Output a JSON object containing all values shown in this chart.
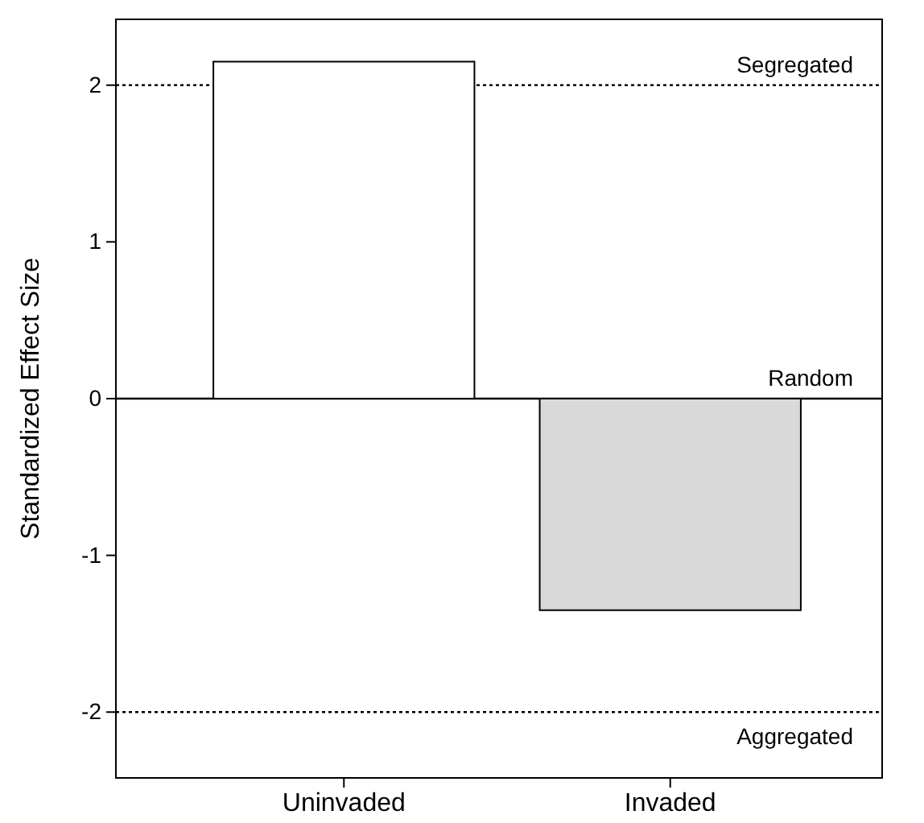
{
  "chart_data": {
    "type": "bar",
    "ylabel": "Standardized Effect Size",
    "categories": [
      "Uninvaded",
      "Invaded"
    ],
    "values": [
      2.15,
      -1.35
    ],
    "colors": [
      "#ffffff",
      "#d9d9d9"
    ],
    "ylim": [
      -2.42,
      2.42
    ],
    "yticks": [
      -2,
      -1,
      0,
      1,
      2
    ],
    "ref_lines": [
      {
        "axis": "y",
        "value": 2,
        "label": "Segregated",
        "line_style": "dotted"
      },
      {
        "axis": "y",
        "value": 0,
        "label": "Random",
        "line_style": "solid"
      },
      {
        "axis": "y",
        "value": -2,
        "label": "Aggregated",
        "line_style": "dotted"
      }
    ]
  }
}
